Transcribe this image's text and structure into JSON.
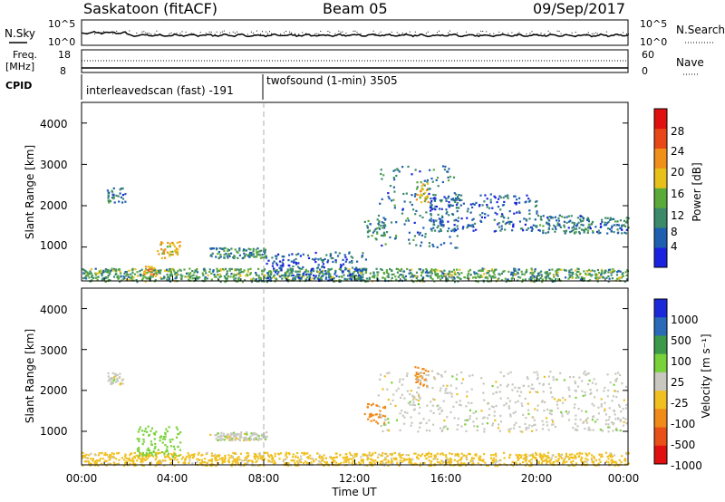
{
  "header": {
    "station": "Saskatoon (fitACF)",
    "beam": "Beam 05",
    "date": "09/Sep/2017"
  },
  "top_panels": {
    "nsky_label": "N.Sky",
    "nsearch_label": "N.Search",
    "noise_ticks_left": [
      "10^5",
      "10^0"
    ],
    "noise_ticks_right": [
      "10^5",
      "10^0"
    ],
    "freq_label": "Freq.",
    "freq_unit": "[MHz]",
    "freq_ticks": [
      "18",
      "8"
    ],
    "nave_label": "Nave",
    "nave_ticks": [
      "60",
      "0"
    ],
    "cpid_label": "CPID",
    "cpid_segments": [
      {
        "label": "interleavedscan (fast) -191",
        "start_hour": 0,
        "end_hour": 8
      },
      {
        "label": "twofsound (1-min) 3505",
        "start_hour": 8,
        "end_hour": 24
      }
    ]
  },
  "axes": {
    "y_label": "Slant Range [km]",
    "y_ticks": [
      "1000",
      "2000",
      "3000",
      "4000"
    ],
    "x_label": "Time UT",
    "x_ticks": [
      "00:00",
      "04:00",
      "08:00",
      "12:00",
      "16:00",
      "20:00",
      "00:00"
    ]
  },
  "power_scale": {
    "label": "Power [dB]",
    "ticks": [
      "4",
      "8",
      "12",
      "16",
      "20",
      "24",
      "28"
    ],
    "colors": [
      "#1a22e0",
      "#1f5fb0",
      "#3c8a6a",
      "#5aaa3a",
      "#e8c01a",
      "#f0901a",
      "#e84818",
      "#e01010"
    ]
  },
  "velocity_scale": {
    "label": "Velocity [m s⁻¹]",
    "ticks": [
      "1000",
      "500",
      "100",
      "25",
      "-25",
      "-100",
      "-500",
      "-1000"
    ],
    "colors": [
      "#1a2ad8",
      "#2a6ab8",
      "#3a9a4a",
      "#7ad23a",
      "#c8c8c0",
      "#f0c020",
      "#f08a18",
      "#e85018",
      "#e01010"
    ]
  },
  "chart_data": {
    "type": "heatmap",
    "x_range_hours": [
      0,
      24
    ],
    "y_range_km": [
      180,
      4500
    ],
    "power_features": [
      {
        "t0": 0.0,
        "t1": 24.0,
        "r0": 180,
        "r1": 500,
        "level": "mixed-high",
        "desc_power_db": 12
      },
      {
        "t0": 1.1,
        "t1": 1.9,
        "r0": 2100,
        "r1": 2450,
        "desc_power_db": 8
      },
      {
        "t0": 2.7,
        "t1": 3.3,
        "r0": 350,
        "r1": 550,
        "desc_power_db": 20
      },
      {
        "t0": 3.3,
        "t1": 4.3,
        "r0": 750,
        "r1": 1150,
        "desc_power_db": 18
      },
      {
        "t0": 5.6,
        "t1": 8.1,
        "r0": 750,
        "r1": 1000,
        "desc_power_db": 10
      },
      {
        "t0": 8.1,
        "t1": 12.5,
        "r0": 200,
        "r1": 900,
        "desc_power_db": 6
      },
      {
        "t0": 12.4,
        "t1": 13.3,
        "r0": 1200,
        "r1": 1700,
        "desc_power_db": 10
      },
      {
        "t0": 13.0,
        "t1": 16.5,
        "r0": 1000,
        "r1": 3000,
        "desc_power_db": 8
      },
      {
        "t0": 14.6,
        "t1": 15.2,
        "r0": 2100,
        "r1": 2600,
        "desc_power_db": 18
      },
      {
        "t0": 15.2,
        "t1": 20.0,
        "r0": 1400,
        "r1": 2300,
        "desc_power_db": 6
      },
      {
        "t0": 20.0,
        "t1": 24.0,
        "r0": 1350,
        "r1": 1800,
        "desc_power_db": 8
      }
    ],
    "velocity_features": [
      {
        "t0": 0.0,
        "t1": 24.0,
        "r0": 180,
        "r1": 500,
        "desc_velocity": -50
      },
      {
        "t0": 1.1,
        "t1": 1.9,
        "r0": 2150,
        "r1": 2450,
        "desc_velocity": 0
      },
      {
        "t0": 2.4,
        "t1": 4.3,
        "r0": 400,
        "r1": 1150,
        "desc_velocity": 60
      },
      {
        "t0": 5.6,
        "t1": 8.1,
        "r0": 800,
        "r1": 1000,
        "desc_velocity": 0
      },
      {
        "t0": 12.4,
        "t1": 13.3,
        "r0": 1200,
        "r1": 1700,
        "desc_velocity": -300
      },
      {
        "t0": 14.6,
        "t1": 15.2,
        "r0": 2100,
        "r1": 2600,
        "desc_velocity": -400
      },
      {
        "t0": 13.0,
        "t1": 24.0,
        "r0": 1000,
        "r1": 2500,
        "desc_velocity": 0
      }
    ]
  }
}
